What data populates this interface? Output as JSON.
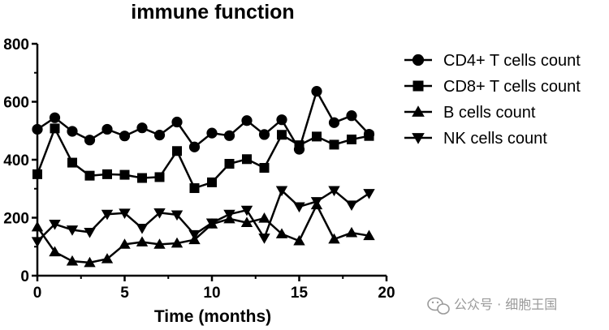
{
  "chart_data": {
    "type": "line",
    "title": "immune function",
    "xlabel": "Time (months)",
    "ylabel": "",
    "xlim": [
      0,
      20
    ],
    "ylim": [
      0,
      800
    ],
    "x_ticks": [
      "0",
      "5",
      "10",
      "15",
      "20"
    ],
    "y_ticks": [
      "0",
      "200",
      "400",
      "600",
      "800"
    ],
    "grid": false,
    "legend_position": "right",
    "x": [
      0,
      1,
      2,
      3,
      4,
      5,
      6,
      7,
      8,
      9,
      10,
      11,
      12,
      13,
      14,
      15,
      16,
      17,
      18,
      19
    ],
    "series": [
      {
        "name": "CD4+ T cells count",
        "marker": "circle",
        "values": [
          505,
          545,
          498,
          468,
          505,
          482,
          510,
          485,
          530,
          444,
          492,
          483,
          535,
          487,
          538,
          436,
          636,
          528,
          552,
          488
        ]
      },
      {
        "name": "CD8+ T cells count",
        "marker": "square",
        "values": [
          350,
          508,
          390,
          345,
          350,
          348,
          337,
          340,
          430,
          302,
          322,
          386,
          402,
          372,
          486,
          450,
          480,
          452,
          470,
          482
        ]
      },
      {
        "name": "B cells count",
        "marker": "triangle-up",
        "values": [
          168,
          82,
          50,
          45,
          58,
          108,
          116,
          108,
          112,
          124,
          178,
          196,
          183,
          198,
          144,
          120,
          244,
          126,
          148,
          138
        ]
      },
      {
        "name": "NK cells count",
        "marker": "triangle-down",
        "values": [
          118,
          178,
          158,
          150,
          212,
          216,
          164,
          217,
          210,
          142,
          182,
          212,
          226,
          130,
          294,
          238,
          256,
          294,
          244,
          284
        ]
      }
    ],
    "line_color": "#000000"
  },
  "watermark": {
    "text": "公众号 · 细胞王国",
    "icon": "wechat-icon"
  }
}
